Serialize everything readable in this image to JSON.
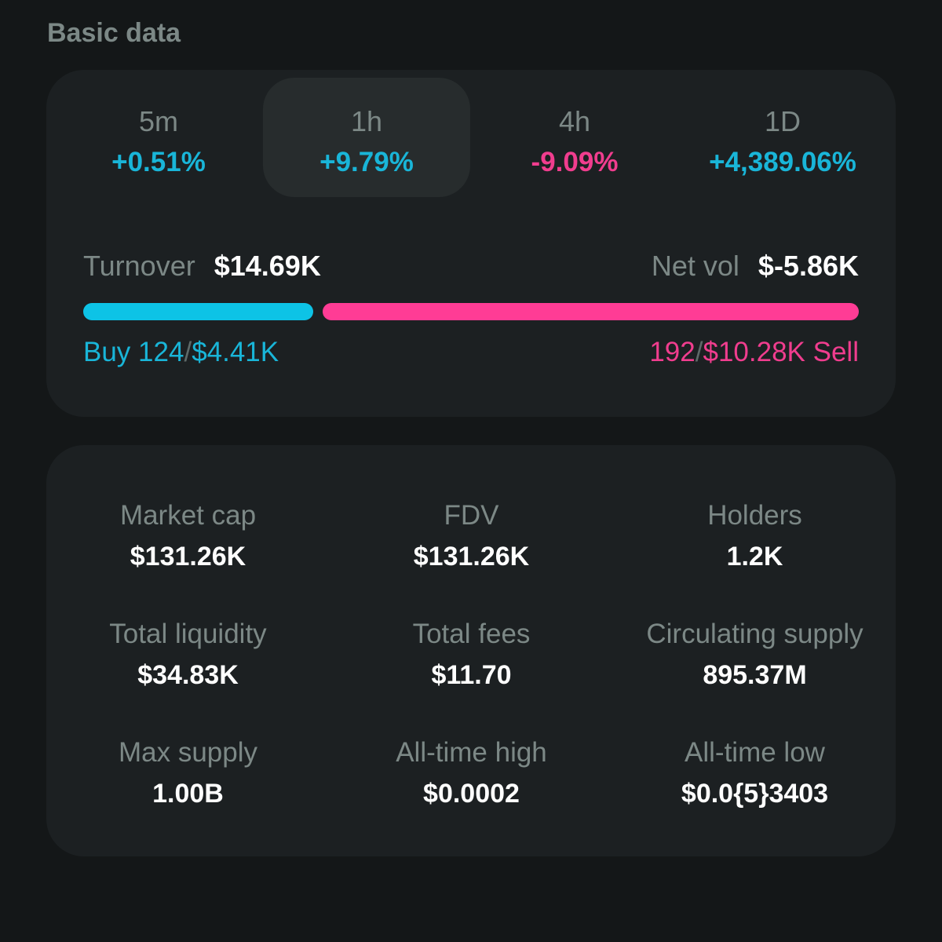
{
  "section": {
    "title": "Basic data"
  },
  "timeframes": [
    {
      "label": "5m",
      "change": "+0.51%",
      "direction": "up",
      "active": false
    },
    {
      "label": "1h",
      "change": "+9.79%",
      "direction": "up",
      "active": true
    },
    {
      "label": "4h",
      "change": "-9.09%",
      "direction": "down",
      "active": false
    },
    {
      "label": "1D",
      "change": "+4,389.06%",
      "direction": "up",
      "active": false
    }
  ],
  "turnover": {
    "label": "Turnover",
    "value": "$14.69K"
  },
  "net_vol": {
    "label": "Net vol",
    "value": "$-5.86K"
  },
  "buy_sell_ratio": {
    "buy_fraction": 0.3
  },
  "buy": {
    "label": "Buy",
    "count": "124",
    "separator": "/",
    "amount": "$4.41K"
  },
  "sell": {
    "label": "Sell",
    "count": "192",
    "separator": "/",
    "amount": "$10.28K"
  },
  "stats": [
    {
      "label": "Market cap",
      "value": "$131.26K"
    },
    {
      "label": "FDV",
      "value": "$131.26K"
    },
    {
      "label": "Holders",
      "value": "1.2K"
    },
    {
      "label": "Total liquidity",
      "value": "$34.83K"
    },
    {
      "label": "Total fees",
      "value": "$11.70"
    },
    {
      "label": "Circulating supply",
      "value": "895.37M"
    },
    {
      "label": "Max supply",
      "value": "1.00B"
    },
    {
      "label": "All-time high",
      "value": "$0.0002"
    },
    {
      "label": "All-time low",
      "value": "$0.0{5}3403"
    }
  ],
  "colors": {
    "positive": "#19b5d8",
    "negative": "#f03d8e",
    "buy_bar": "#0dc3e6",
    "sell_bar": "#ff3c95",
    "background": "#141718",
    "card": "#1c2022"
  }
}
